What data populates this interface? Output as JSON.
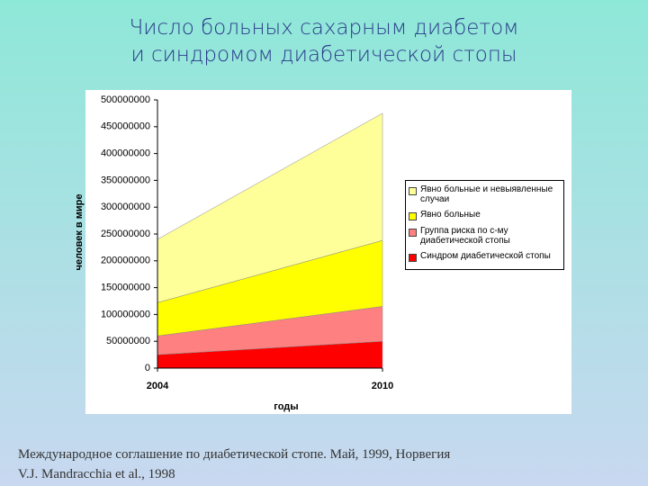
{
  "chart_data": {
    "type": "stacked_area",
    "title": "Число  больных сахарным диабетом\nи синдромом диабетической стопы",
    "x_label": "годы",
    "y_label": "человек в мире",
    "x": [
      2004,
      2010
    ],
    "xlim": [
      2004,
      2010
    ],
    "xticks": [
      2004,
      2010
    ],
    "ylim": [
      0,
      500000000
    ],
    "yticks": [
      0,
      50000000,
      100000000,
      150000000,
      200000000,
      250000000,
      300000000,
      350000000,
      400000000,
      450000000,
      500000000
    ],
    "grid": false,
    "legend": "right",
    "series": [
      {
        "name": "Синдром диабетической стопы",
        "color": "#ff0000",
        "values": [
          25000000,
          50000000
        ]
      },
      {
        "name": "Группа риска по с-му диабетической стопы",
        "color": "#ff8080",
        "values": [
          35000000,
          65000000
        ]
      },
      {
        "name": "Явно больные",
        "color": "#ffff00",
        "values": [
          62000000,
          123000000
        ]
      },
      {
        "name": "Явно больные и невыявленные случаи",
        "color": "#ffff99",
        "values": [
          118000000,
          237000000
        ]
      }
    ],
    "annotations": [
      "Международное соглашение по диабетической стопе. Май, 1999, Норвегия",
      "V.J. Mandracchia et al., 1998"
    ]
  }
}
